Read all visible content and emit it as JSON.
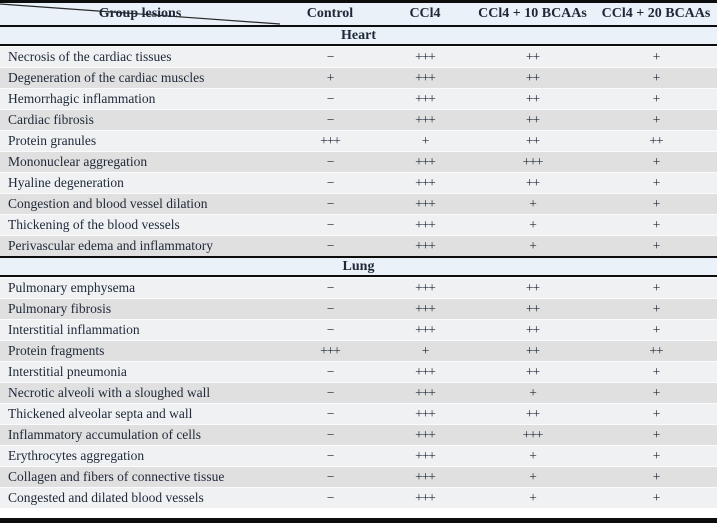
{
  "table": {
    "header": {
      "group_label": "Group lesions",
      "columns": [
        "Control",
        "CCl4",
        "CCl4 + 10 BCAAs",
        "CCl4 + 20 BCAAs"
      ]
    },
    "sections": [
      {
        "title": "Heart",
        "rows": [
          {
            "lesion": "Necrosis of the cardiac tissues",
            "values": [
              "−",
              "+++",
              "++",
              "+"
            ]
          },
          {
            "lesion": "Degeneration of the cardiac muscles",
            "values": [
              "+",
              "+++",
              "++",
              "+"
            ]
          },
          {
            "lesion": "Hemorrhagic inflammation",
            "values": [
              "−",
              "+++",
              "++",
              "+"
            ]
          },
          {
            "lesion": "Cardiac fibrosis",
            "values": [
              "−",
              "+++",
              "++",
              "+"
            ]
          },
          {
            "lesion": "Protein granules",
            "values": [
              "+++",
              "+",
              "++",
              "++"
            ]
          },
          {
            "lesion": "Mononuclear aggregation",
            "values": [
              "−",
              "+++",
              "+++",
              "+"
            ]
          },
          {
            "lesion": "Hyaline degeneration",
            "values": [
              "−",
              "+++",
              "++",
              "+"
            ]
          },
          {
            "lesion": "Congestion and blood vessel dilation",
            "values": [
              "−",
              "+++",
              "+",
              "+"
            ]
          },
          {
            "lesion": "Thickening of the blood vessels",
            "values": [
              "−",
              "+++",
              "+",
              "+"
            ]
          },
          {
            "lesion": "Perivascular edema and inflammatory",
            "values": [
              "−",
              "+++",
              "+",
              "+"
            ]
          }
        ]
      },
      {
        "title": "Lung",
        "rows": [
          {
            "lesion": "Pulmonary emphysema",
            "values": [
              "−",
              "+++",
              "++",
              "+"
            ]
          },
          {
            "lesion": "Pulmonary fibrosis",
            "values": [
              "−",
              "+++",
              "++",
              "+"
            ]
          },
          {
            "lesion": "Interstitial inflammation",
            "values": [
              "−",
              "+++",
              "++",
              "+"
            ]
          },
          {
            "lesion": "Protein fragments",
            "values": [
              "+++",
              "+",
              "++",
              "++"
            ]
          },
          {
            "lesion": "Interstitial pneumonia",
            "values": [
              "−",
              "+++",
              "++",
              "+"
            ]
          },
          {
            "lesion": "Necrotic alveoli with a sloughed wall",
            "values": [
              "−",
              "+++",
              "+",
              "+"
            ]
          },
          {
            "lesion": "Thickened alveolar septa and wall",
            "values": [
              "−",
              "+++",
              "++",
              "+"
            ]
          },
          {
            "lesion": "Inflammatory accumulation of cells",
            "values": [
              "−",
              "+++",
              "+++",
              "+"
            ]
          },
          {
            "lesion": "Erythrocytes aggregation",
            "values": [
              "−",
              "+++",
              "+",
              "+"
            ]
          },
          {
            "lesion": "Collagen and fibers of connective tissue",
            "values": [
              "−",
              "+++",
              "+",
              "+"
            ]
          },
          {
            "lesion": "Congested and dilated blood vessels",
            "values": [
              "−",
              "+++",
              "+",
              "+"
            ]
          }
        ]
      }
    ],
    "colors": {
      "band_bg": "#eaf1f8",
      "row_light": "#f0f1f3",
      "row_gray": "#e0e0e0",
      "rule": "#0d0d0d",
      "text": "#1e2838"
    }
  }
}
